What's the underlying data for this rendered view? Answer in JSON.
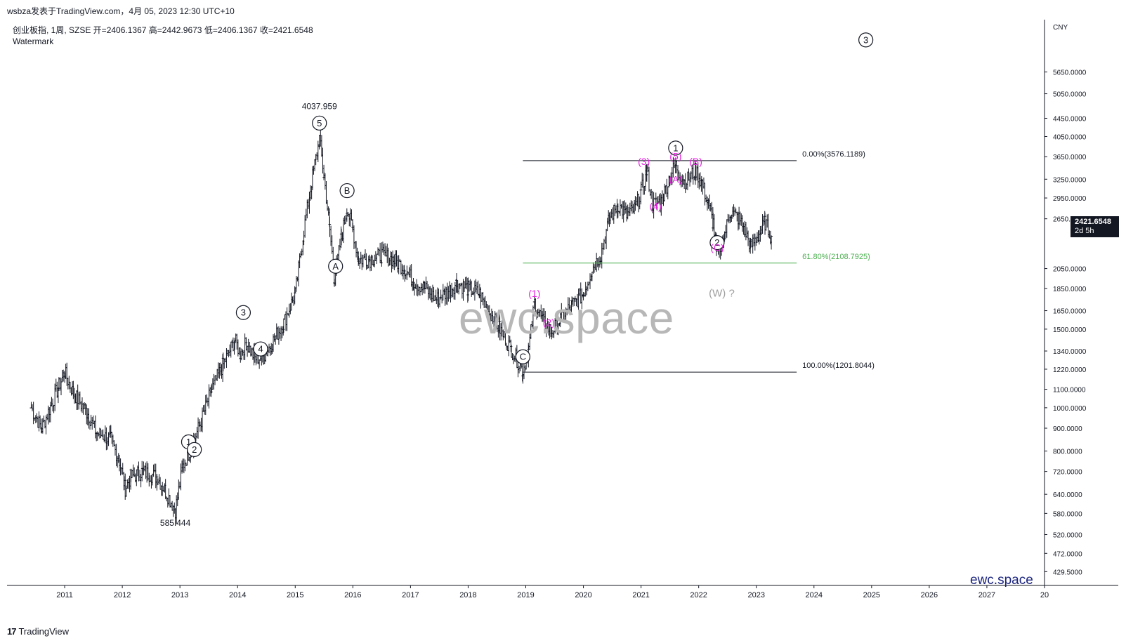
{
  "header": {
    "published_by": "wsbza发表于TradingView.com，4月 05, 2023 12:30 UTC+10"
  },
  "symbol_info": {
    "line": "创业板指, 1周, SZSE  开=2406.1367  高=2442.9673  低=2406.1367  收=2421.6548",
    "watermark_label": "Watermark"
  },
  "watermark_text": "ewc.space",
  "brand_text": "ewc.space",
  "footer": {
    "logo": "17",
    "name": "TradingView"
  },
  "currency": "CNY",
  "last_price": {
    "value": "2421.6548",
    "countdown": "2d 5h"
  },
  "colors": {
    "candle": "#131722",
    "elliott_black": "#131722",
    "elliott_magenta": "#e91ee3",
    "elliott_grey": "#9e9e9e",
    "fib_line": "#131722",
    "fib_green": "#4caf50",
    "brand": "#1a237e"
  },
  "chart_data": {
    "type": "line",
    "title": "创业板指, 1周, SZSE",
    "xlabel": "",
    "ylabel": "",
    "y_scale": "log",
    "ylim": [
      400,
      7400
    ],
    "xlim": [
      2010.0,
      2028.0
    ],
    "x_ticks": [
      "2011",
      "2012",
      "2013",
      "2014",
      "2015",
      "2016",
      "2017",
      "2018",
      "2019",
      "2020",
      "2021",
      "2022",
      "2023",
      "2024",
      "2025",
      "2026",
      "2027",
      "20"
    ],
    "y_ticks": [
      "5650.0000",
      "5050.0000",
      "4450.0000",
      "4050.0000",
      "3650.0000",
      "3250.0000",
      "2950.0000",
      "2650.0000",
      "2050.0000",
      "1850.0000",
      "1650.0000",
      "1500.0000",
      "1340.0000",
      "1220.0000",
      "1100.0000",
      "1000.0000",
      "900.0000",
      "800.0000",
      "720.0000",
      "640.0000",
      "580.0000",
      "520.0000",
      "472.0000",
      "429.5000"
    ],
    "series": [
      {
        "values": [
          [
            2010.42,
            1000
          ],
          [
            2010.6,
            900
          ],
          [
            2010.9,
            1120
          ],
          [
            2011.0,
            1200
          ],
          [
            2011.15,
            1080
          ],
          [
            2011.4,
            970
          ],
          [
            2011.55,
            880
          ],
          [
            2011.8,
            850
          ],
          [
            2011.95,
            760
          ],
          [
            2012.05,
            660
          ],
          [
            2012.15,
            700
          ],
          [
            2012.35,
            720
          ],
          [
            2012.6,
            700
          ],
          [
            2012.75,
            650
          ],
          [
            2012.92,
            590
          ],
          [
            2013.05,
            740
          ],
          [
            2013.2,
            820
          ],
          [
            2013.35,
            920
          ],
          [
            2013.55,
            1100
          ],
          [
            2013.75,
            1250
          ],
          [
            2013.95,
            1420
          ],
          [
            2014.05,
            1320
          ],
          [
            2014.15,
            1400
          ],
          [
            2014.3,
            1290
          ],
          [
            2014.45,
            1300
          ],
          [
            2014.6,
            1400
          ],
          [
            2014.8,
            1550
          ],
          [
            2015.0,
            1800
          ],
          [
            2015.15,
            2500
          ],
          [
            2015.3,
            3300
          ],
          [
            2015.42,
            4000
          ],
          [
            2015.5,
            3300
          ],
          [
            2015.6,
            2500
          ],
          [
            2015.68,
            1950
          ],
          [
            2015.8,
            2400
          ],
          [
            2015.9,
            2800
          ],
          [
            2016.0,
            2500
          ],
          [
            2016.1,
            2150
          ],
          [
            2016.3,
            2150
          ],
          [
            2016.5,
            2200
          ],
          [
            2016.7,
            2150
          ],
          [
            2016.9,
            2050
          ],
          [
            2017.05,
            1920
          ],
          [
            2017.25,
            1850
          ],
          [
            2017.45,
            1750
          ],
          [
            2017.6,
            1800
          ],
          [
            2017.8,
            1900
          ],
          [
            2018.0,
            1850
          ],
          [
            2018.2,
            1800
          ],
          [
            2018.35,
            1650
          ],
          [
            2018.55,
            1500
          ],
          [
            2018.75,
            1350
          ],
          [
            2018.95,
            1210
          ],
          [
            2019.05,
            1350
          ],
          [
            2019.15,
            1720
          ],
          [
            2019.3,
            1560
          ],
          [
            2019.45,
            1480
          ],
          [
            2019.6,
            1580
          ],
          [
            2019.8,
            1700
          ],
          [
            2020.0,
            1800
          ],
          [
            2020.15,
            2050
          ],
          [
            2020.3,
            2200
          ],
          [
            2020.45,
            2650
          ],
          [
            2020.6,
            2850
          ],
          [
            2020.75,
            2700
          ],
          [
            2020.9,
            2800
          ],
          [
            2021.0,
            3050
          ],
          [
            2021.1,
            3400
          ],
          [
            2021.2,
            2850
          ],
          [
            2021.35,
            2900
          ],
          [
            2021.5,
            3300
          ],
          [
            2021.6,
            3490
          ],
          [
            2021.75,
            3200
          ],
          [
            2021.95,
            3400
          ],
          [
            2022.05,
            3200
          ],
          [
            2022.15,
            2900
          ],
          [
            2022.25,
            2600
          ],
          [
            2022.32,
            2180
          ],
          [
            2022.45,
            2450
          ],
          [
            2022.55,
            2750
          ],
          [
            2022.7,
            2650
          ],
          [
            2022.8,
            2500
          ],
          [
            2022.9,
            2300
          ],
          [
            2023.05,
            2450
          ],
          [
            2023.15,
            2600
          ],
          [
            2023.26,
            2421.6548
          ]
        ]
      }
    ],
    "annotations": [
      {
        "text": "4037.959",
        "x": 2015.42,
        "y": 4037.959,
        "kind": "price"
      },
      {
        "text": "585.444",
        "x": 2012.92,
        "y": 585.444,
        "kind": "price"
      },
      {
        "text": "5",
        "x": 2015.42,
        "y": 4037.959,
        "kind": "circled"
      },
      {
        "text": "1",
        "x": 2013.15,
        "y": 780,
        "kind": "circled"
      },
      {
        "text": "2",
        "x": 2013.25,
        "y": 750,
        "kind": "circled"
      },
      {
        "text": "3",
        "x": 2014.1,
        "y": 1520,
        "kind": "circled"
      },
      {
        "text": "4",
        "x": 2014.4,
        "y": 1260,
        "kind": "circled"
      },
      {
        "text": "A",
        "x": 2015.7,
        "y": 1930,
        "kind": "circled"
      },
      {
        "text": "B",
        "x": 2015.9,
        "y": 2850,
        "kind": "circled"
      },
      {
        "text": "C",
        "x": 2018.95,
        "y": 1210,
        "kind": "circled"
      },
      {
        "text": "1",
        "x": 2021.6,
        "y": 3550,
        "kind": "circled"
      },
      {
        "text": "2",
        "x": 2022.32,
        "y": 2180,
        "kind": "circled"
      },
      {
        "text": "3",
        "x": 2024.9,
        "y": 6200,
        "kind": "circled"
      },
      {
        "text": "(1)",
        "x": 2019.15,
        "y": 1720,
        "kind": "magenta"
      },
      {
        "text": "(2)",
        "x": 2019.4,
        "y": 1480,
        "kind": "magenta"
      },
      {
        "text": "(3)",
        "x": 2021.05,
        "y": 3400,
        "kind": "magenta"
      },
      {
        "text": "(4)",
        "x": 2021.25,
        "y": 2700,
        "kind": "magenta"
      },
      {
        "text": "(5)",
        "x": 2021.6,
        "y": 3490,
        "kind": "magenta"
      },
      {
        "text": "(A)",
        "x": 2021.6,
        "y": 3100,
        "kind": "magenta"
      },
      {
        "text": "(B)",
        "x": 2021.95,
        "y": 3400,
        "kind": "magenta"
      },
      {
        "text": "(C)",
        "x": 2022.32,
        "y": 2180,
        "kind": "magenta"
      },
      {
        "text": "(W) ?",
        "x": 2022.4,
        "y": 2050,
        "kind": "grey"
      }
    ],
    "fib_levels": [
      {
        "label": "0.00%(3576.1189)",
        "value": 3576.1189
      },
      {
        "label": "61.80%(2108.7925)",
        "value": 2108.7925
      },
      {
        "label": "100.00%(1201.8044)",
        "value": 1201.8044
      }
    ],
    "fib_range_x": [
      2018.95,
      2023.7
    ],
    "grid": false,
    "legend": "none"
  }
}
